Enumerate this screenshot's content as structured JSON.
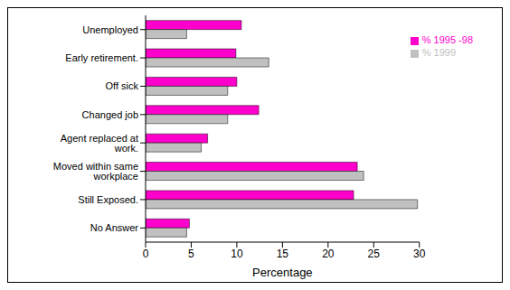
{
  "chart_data": {
    "type": "bar",
    "orientation": "horizontal",
    "x_label": "Percentage",
    "categories": [
      "Unemployed",
      "Early retirement.",
      "Off sick",
      "Changed job",
      "Agent replaced at work.",
      "Moved within same workplace",
      "Still Exposed.",
      "No Answer"
    ],
    "series": [
      {
        "name": "% 1995 -98",
        "color": "#ff00cc",
        "values": [
          10.5,
          9.9,
          10.0,
          12.4,
          6.8,
          23.2,
          22.8,
          4.8
        ]
      },
      {
        "name": "% 1999",
        "color": "#c0c0c0",
        "values": [
          4.5,
          13.5,
          9.0,
          9.0,
          6.1,
          23.9,
          29.8,
          4.5
        ]
      }
    ],
    "xlim": [
      0,
      30
    ],
    "xticks": [
      0,
      5,
      10,
      15,
      20,
      25,
      30
    ],
    "grid": false,
    "legend": "top-right"
  }
}
